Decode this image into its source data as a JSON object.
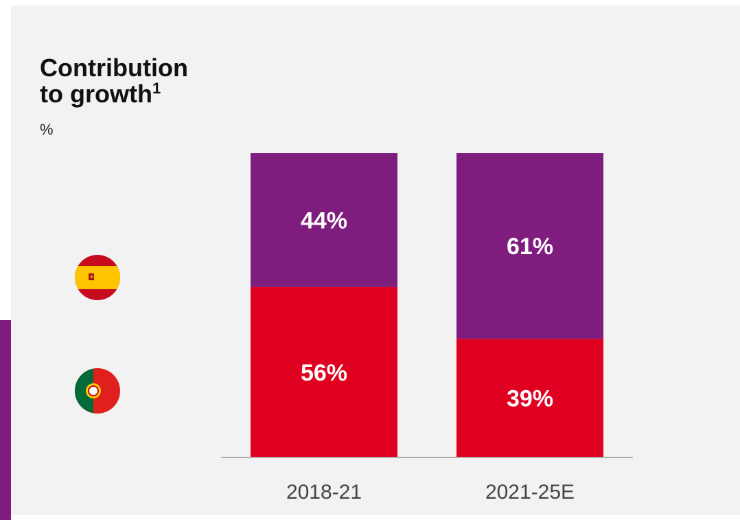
{
  "title_line1": "Contribution",
  "title_line2": "to growth",
  "title_superscript": "1",
  "unit": "%",
  "legend": [
    {
      "name": "spain-flag-icon",
      "color": "#7f1d7f"
    },
    {
      "name": "portugal-flag-icon",
      "color": "#e00020"
    }
  ],
  "chart_data": {
    "type": "bar",
    "stacked": true,
    "categories": [
      "2018-21",
      "2021-25E"
    ],
    "series": [
      {
        "values": [
          56,
          39
        ],
        "labels": [
          "56%",
          "39%"
        ],
        "color": "#e00020"
      },
      {
        "values": [
          44,
          61
        ],
        "labels": [
          "44%",
          "61%"
        ],
        "color": "#7f1d7f"
      }
    ],
    "ylim": [
      0,
      100
    ],
    "grid": false
  }
}
